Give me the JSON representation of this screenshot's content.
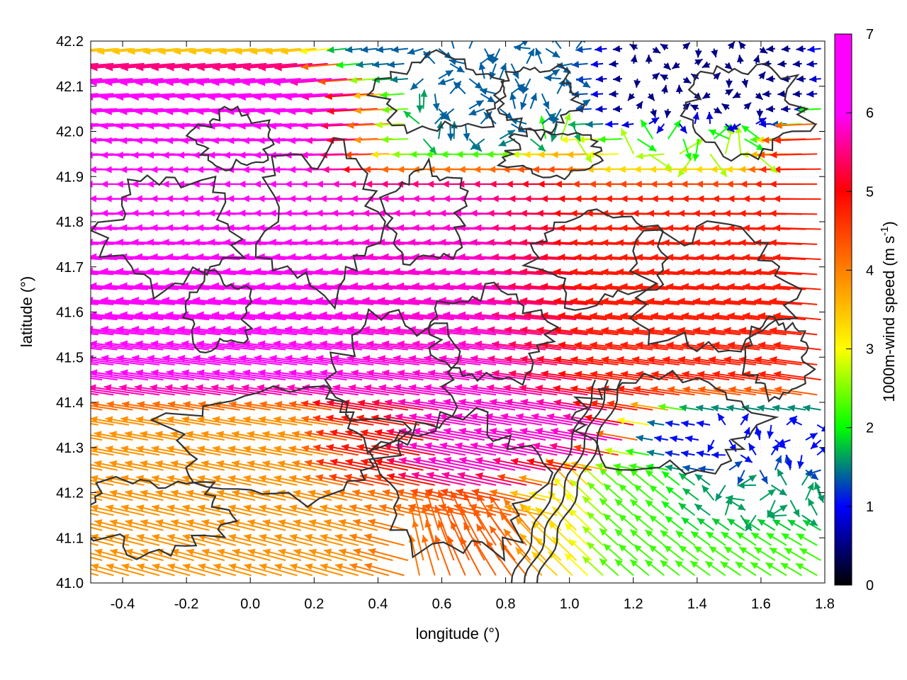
{
  "chart_data": {
    "type": "vector-field",
    "xlabel": "longitude (°)",
    "ylabel": "latitude (°)",
    "xlim": [
      -0.5,
      1.8
    ],
    "ylim": [
      41.0,
      42.2
    ],
    "xticks": [
      "-0.4",
      "-0.2",
      "0.0",
      "0.2",
      "0.4",
      "0.6",
      "0.8",
      "1.0",
      "1.2",
      "1.4",
      "1.6",
      "1.8"
    ],
    "yticks": [
      "41.0",
      "41.1",
      "41.2",
      "41.3",
      "41.4",
      "41.5",
      "41.6",
      "41.7",
      "41.8",
      "41.9",
      "42.0",
      "42.1",
      "42.2"
    ],
    "colorbar": {
      "label_main": "1000m-wind speed (m s",
      "label_sup": "-1",
      "label_end": ")",
      "range": [
        0,
        7
      ],
      "ticks": [
        "0",
        "1",
        "2",
        "3",
        "4",
        "5",
        "6",
        "7"
      ],
      "stops": [
        "#000000",
        "#0000ff",
        "#00ff00",
        "#ffff00",
        "#ff8000",
        "#ff0000",
        "#ff00ff"
      ]
    },
    "contour_color": "#333333",
    "wind_field": {
      "regions": [
        {
          "lon": [
            -0.5,
            0.4
          ],
          "lat": [
            41.45,
            42.05
          ],
          "speed": 7.0,
          "direction": "westward"
        },
        {
          "lon": [
            0.4,
            1.0
          ],
          "lat": [
            41.25,
            41.9
          ],
          "speed": 6.8,
          "direction": "westward"
        },
        {
          "lon": [
            1.0,
            1.8
          ],
          "lat": [
            41.45,
            41.95
          ],
          "speed": 5.6,
          "direction": "westward"
        },
        {
          "lon": [
            -0.5,
            0.5
          ],
          "lat": [
            41.0,
            41.35
          ],
          "speed": 4.5,
          "direction": "westward"
        },
        {
          "lon": [
            0.5,
            1.0
          ],
          "lat": [
            41.95,
            42.2
          ],
          "speed": 1.6,
          "direction": "variable"
        },
        {
          "lon": [
            1.2,
            1.6
          ],
          "lat": [
            41.95,
            42.15
          ],
          "speed": 0.6,
          "direction": "variable"
        },
        {
          "lon": [
            1.45,
            1.8
          ],
          "lat": [
            41.15,
            41.35
          ],
          "speed": 1.2,
          "direction": "variable"
        },
        {
          "lon": [
            1.0,
            1.8
          ],
          "lat": [
            41.0,
            41.2
          ],
          "speed": 2.6,
          "direction": "north-westward"
        },
        {
          "lon": [
            0.5,
            1.0
          ],
          "lat": [
            41.0,
            41.15
          ],
          "speed": 5.0,
          "direction": "variable"
        }
      ]
    }
  }
}
